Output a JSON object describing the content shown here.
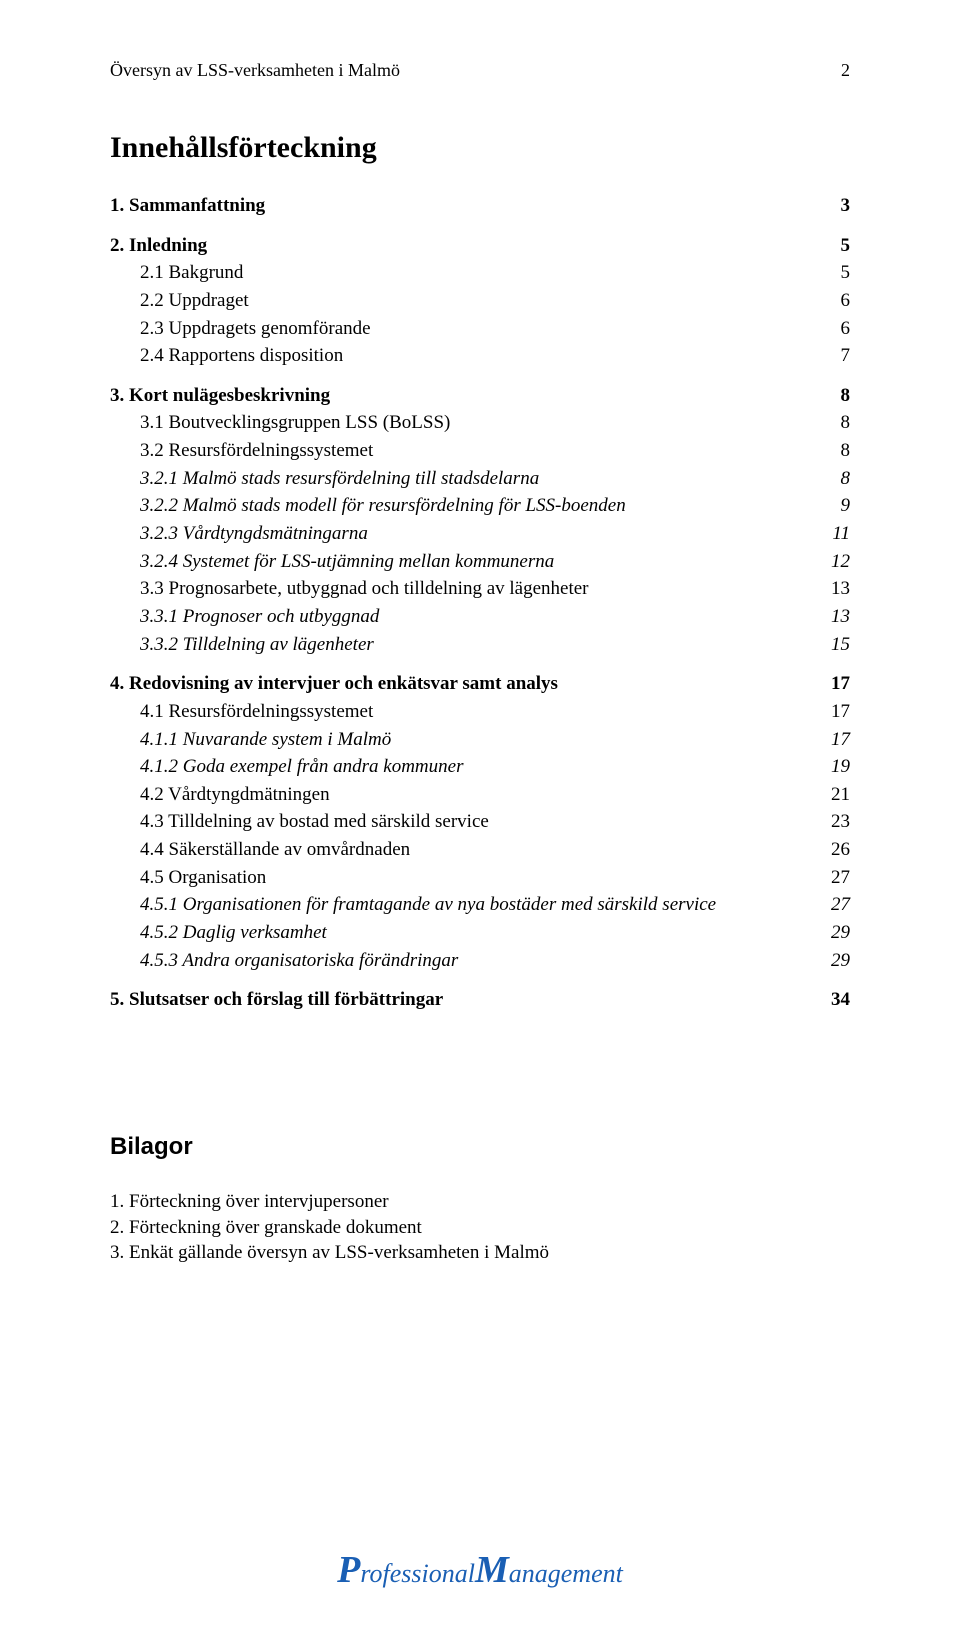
{
  "header": {
    "left": "Översyn av LSS-verksamheten i Malmö",
    "page_number": "2"
  },
  "toc": {
    "title": "Innehållsförteckning",
    "entries": [
      {
        "label": "1. Sammanfattning",
        "pg": "3",
        "bold": true,
        "italic": false,
        "indent": 0,
        "gap": "md"
      },
      {
        "label": "2. Inledning",
        "pg": "5",
        "bold": true,
        "italic": false,
        "indent": 0,
        "gap": "md"
      },
      {
        "label": "2.1  Bakgrund",
        "pg": "5",
        "bold": false,
        "italic": false,
        "indent": 1,
        "gap": "sm"
      },
      {
        "label": "2.2  Uppdraget",
        "pg": "6",
        "bold": false,
        "italic": false,
        "indent": 1,
        "gap": "sm"
      },
      {
        "label": "2.3  Uppdragets genomförande",
        "pg": "6",
        "bold": false,
        "italic": false,
        "indent": 1,
        "gap": "sm"
      },
      {
        "label": "2.4  Rapportens disposition",
        "pg": "7",
        "bold": false,
        "italic": false,
        "indent": 1,
        "gap": "sm"
      },
      {
        "label": "3. Kort nulägesbeskrivning",
        "pg": "8",
        "bold": true,
        "italic": false,
        "indent": 0,
        "gap": "md"
      },
      {
        "label": "3.1  Boutvecklingsgruppen LSS (BoLSS)",
        "pg": "8",
        "bold": false,
        "italic": false,
        "indent": 1,
        "gap": "sm"
      },
      {
        "label": "3.2  Resursfördelningssystemet",
        "pg": "8",
        "bold": false,
        "italic": false,
        "indent": 1,
        "gap": "sm"
      },
      {
        "label": "3.2.1  Malmö stads resursfördelning till stadsdelarna",
        "pg": "8",
        "bold": false,
        "italic": true,
        "indent": 2,
        "gap": "sm"
      },
      {
        "label": "3.2.2  Malmö stads modell för resursfördelning för LSS-boenden",
        "pg": "9",
        "bold": false,
        "italic": true,
        "indent": 2,
        "gap": "sm"
      },
      {
        "label": "3.2.3  Vårdtyngdsmätningarna",
        "pg": "11",
        "bold": false,
        "italic": true,
        "indent": 2,
        "gap": "sm"
      },
      {
        "label": "3.2.4  Systemet för LSS-utjämning mellan kommunerna",
        "pg": "12",
        "bold": false,
        "italic": true,
        "indent": 2,
        "gap": "sm"
      },
      {
        "label": "3.3  Prognosarbete, utbyggnad och tilldelning av lägenheter",
        "pg": "13",
        "bold": false,
        "italic": false,
        "indent": 1,
        "gap": "sm"
      },
      {
        "label": "3.3.1  Prognoser och utbyggnad",
        "pg": "13",
        "bold": false,
        "italic": true,
        "indent": 2,
        "gap": "sm"
      },
      {
        "label": "3.3.2  Tilldelning av lägenheter",
        "pg": "15",
        "bold": false,
        "italic": true,
        "indent": 2,
        "gap": "sm"
      },
      {
        "label": "4. Redovisning av intervjuer och enkätsvar samt analys",
        "pg": "17",
        "bold": true,
        "italic": false,
        "indent": 0,
        "gap": "md"
      },
      {
        "label": "4.1  Resursfördelningssystemet",
        "pg": "17",
        "bold": false,
        "italic": false,
        "indent": 1,
        "gap": "sm"
      },
      {
        "label": "4.1.1  Nuvarande system i Malmö",
        "pg": "17",
        "bold": false,
        "italic": true,
        "indent": 2,
        "gap": "sm"
      },
      {
        "label": "4.1.2  Goda exempel från andra kommuner",
        "pg": "19",
        "bold": false,
        "italic": true,
        "indent": 2,
        "gap": "sm"
      },
      {
        "label": "4.2  Vårdtyngdmätningen",
        "pg": "21",
        "bold": false,
        "italic": false,
        "indent": 1,
        "gap": "sm"
      },
      {
        "label": "4.3  Tilldelning av bostad med särskild service",
        "pg": "23",
        "bold": false,
        "italic": false,
        "indent": 1,
        "gap": "sm"
      },
      {
        "label": "4.4  Säkerställande av omvårdnaden",
        "pg": "26",
        "bold": false,
        "italic": false,
        "indent": 1,
        "gap": "sm"
      },
      {
        "label": "4.5  Organisation",
        "pg": "27",
        "bold": false,
        "italic": false,
        "indent": 1,
        "gap": "sm"
      },
      {
        "label": "4.5.1  Organisationen för framtagande av nya bostäder med särskild service",
        "pg": "27",
        "bold": false,
        "italic": true,
        "indent": 2,
        "gap": "sm"
      },
      {
        "label": "4.5.2  Daglig verksamhet",
        "pg": "29",
        "bold": false,
        "italic": true,
        "indent": 2,
        "gap": "sm"
      },
      {
        "label": "4.5.3  Andra organisatoriska förändringar",
        "pg": "29",
        "bold": false,
        "italic": true,
        "indent": 2,
        "gap": "sm"
      },
      {
        "label": "5. Slutsatser och förslag till förbättringar",
        "pg": "34",
        "bold": true,
        "italic": false,
        "indent": 0,
        "gap": "md"
      }
    ]
  },
  "bilagor": {
    "title": "Bilagor",
    "items": [
      "1. Förteckning över intervjupersoner",
      "2. Förteckning över granskade dokument",
      "3. Enkät gällande översyn av LSS-verksamheten i Malmö"
    ]
  },
  "logo": {
    "color": "#1a5fb4",
    "text_prefix_big": "P",
    "text_prefix_rest": "rofessional ",
    "text_suffix_big": "M",
    "text_suffix_rest": "anagement"
  }
}
